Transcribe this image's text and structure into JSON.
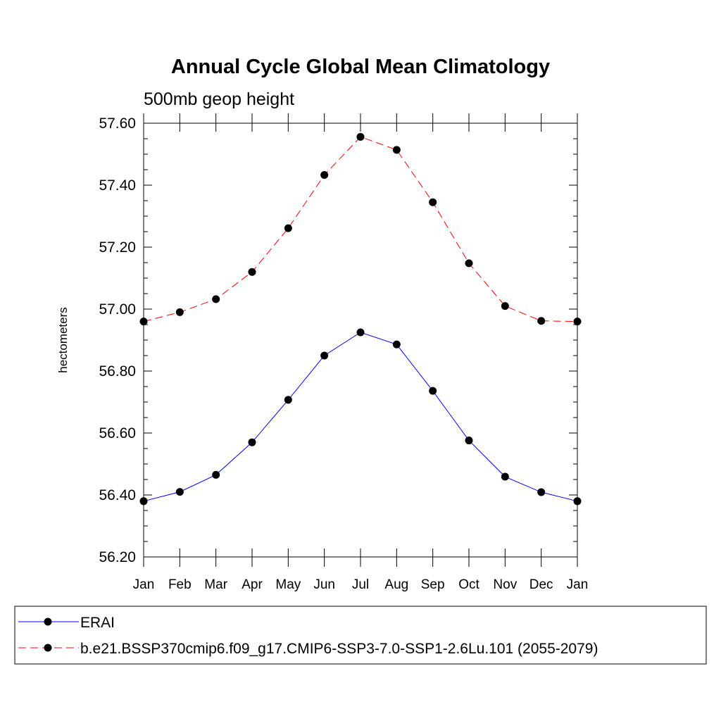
{
  "chart_data": {
    "type": "line",
    "title": "Annual Cycle Global Mean Climatology",
    "subtitle": "500mb geop height",
    "ylabel": "hectometers",
    "xlabel": "",
    "categories": [
      "Jan",
      "Feb",
      "Mar",
      "Apr",
      "May",
      "Jun",
      "Jul",
      "Aug",
      "Sep",
      "Oct",
      "Nov",
      "Dec",
      "Jan"
    ],
    "ylim": [
      56.2,
      57.6
    ],
    "yticks": [
      "56.20",
      "56.40",
      "56.60",
      "56.80",
      "57.00",
      "57.20",
      "57.40",
      "57.60"
    ],
    "ytick_values": [
      56.2,
      56.4,
      56.6,
      56.8,
      57.0,
      57.2,
      57.4,
      57.6
    ],
    "series": [
      {
        "name": "ERAI",
        "color": "#0000ff",
        "dash": "solid",
        "values": [
          56.38,
          56.41,
          56.465,
          56.57,
          56.707,
          56.85,
          56.925,
          56.886,
          56.736,
          56.576,
          56.459,
          56.409,
          56.38
        ]
      },
      {
        "name": "b.e21.BSSP370cmip6.f09_g17.CMIP6-SSP3-7.0-SSP1-2.6Lu.101 (2055-2079)",
        "color": "#ff0000",
        "dash": "dashed",
        "values": [
          56.96,
          56.99,
          57.032,
          57.12,
          57.261,
          57.433,
          57.556,
          57.514,
          57.345,
          57.148,
          57.01,
          56.962,
          56.96
        ]
      }
    ],
    "grid": false,
    "legend_position": "bottom"
  }
}
